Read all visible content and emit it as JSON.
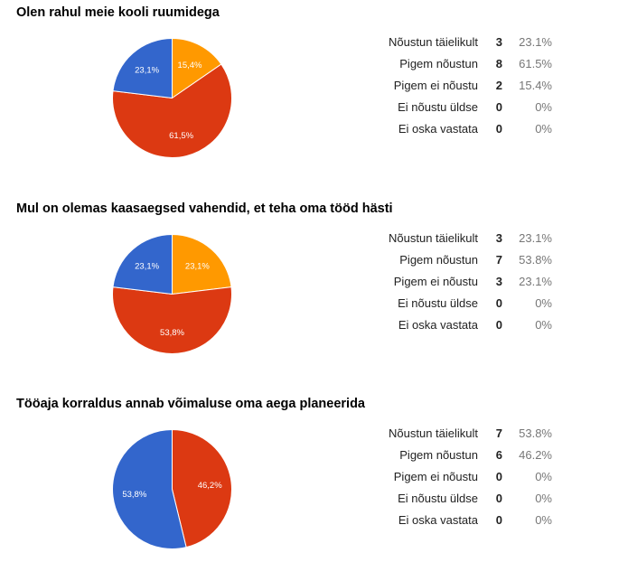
{
  "chart_data": [
    {
      "type": "pie",
      "title": "Olen rahul meie kooli ruumidega",
      "categories": [
        "Nõustun täielikult",
        "Pigem nõustun",
        "Pigem ei nõustu",
        "Ei nõustu üldse",
        "Ei oska vastata"
      ],
      "counts": [
        3,
        8,
        2,
        0,
        0
      ],
      "percents": [
        "23.1%",
        "61.5%",
        "15.4%",
        "0%",
        "0%"
      ],
      "values": [
        23.1,
        61.5,
        15.4,
        0,
        0
      ],
      "slice_labels": [
        "23,1%",
        "61,5%",
        "15,4%",
        "",
        ""
      ],
      "colors": [
        "#3366cc",
        "#dc3912",
        "#ff9900",
        "#109618",
        "#990099"
      ]
    },
    {
      "type": "pie",
      "title": "Mul on olemas kaasaegsed vahendid, et teha oma tööd hästi",
      "categories": [
        "Nõustun täielikult",
        "Pigem nõustun",
        "Pigem ei nõustu",
        "Ei nõustu üldse",
        "Ei oska vastata"
      ],
      "counts": [
        3,
        7,
        3,
        0,
        0
      ],
      "percents": [
        "23.1%",
        "53.8%",
        "23.1%",
        "0%",
        "0%"
      ],
      "values": [
        23.1,
        53.8,
        23.1,
        0,
        0
      ],
      "slice_labels": [
        "23,1%",
        "53,8%",
        "23,1%",
        "",
        ""
      ],
      "colors": [
        "#3366cc",
        "#dc3912",
        "#ff9900",
        "#109618",
        "#990099"
      ]
    },
    {
      "type": "pie",
      "title": "Tööaja korraldus annab võimaluse oma aega planeerida",
      "categories": [
        "Nõustun täielikult",
        "Pigem nõustun",
        "Pigem ei nõustu",
        "Ei nõustu üldse",
        "Ei oska vastata"
      ],
      "counts": [
        7,
        6,
        0,
        0,
        0
      ],
      "percents": [
        "53.8%",
        "46.2%",
        "0%",
        "0%",
        "0%"
      ],
      "values": [
        53.8,
        46.2,
        0,
        0,
        0
      ],
      "slice_labels": [
        "53,8%",
        "46,2%",
        "",
        "",
        ""
      ],
      "colors": [
        "#3366cc",
        "#dc3912",
        "#ff9900",
        "#109618",
        "#990099"
      ]
    }
  ]
}
